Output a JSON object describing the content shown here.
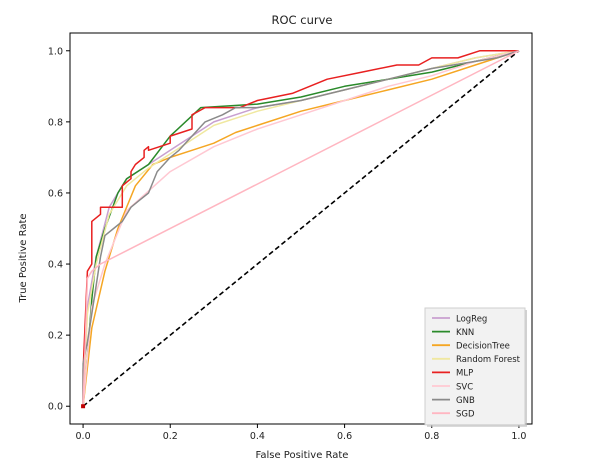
{
  "chart_data": {
    "type": "line",
    "title": "ROC curve",
    "xlabel": "False Positive Rate",
    "ylabel": "True Positive Rate",
    "xlim": [
      -0.03,
      1.03
    ],
    "ylim": [
      -0.05,
      1.05
    ],
    "xticks": [
      "0.0",
      "0.2",
      "0.4",
      "0.6",
      "0.8",
      "1.0"
    ],
    "yticks": [
      "0.0",
      "0.2",
      "0.4",
      "0.6",
      "0.8",
      "1.0"
    ],
    "xtick_values": [
      0,
      0.2,
      0.4,
      0.6,
      0.8,
      1.0
    ],
    "ytick_values": [
      0,
      0.2,
      0.4,
      0.6,
      0.8,
      1.0
    ],
    "grid": false,
    "legend_position": "bottom-right",
    "series": [
      {
        "name": "LogReg",
        "color": "#c8a0d0",
        "x": [
          0,
          0.01,
          0.03,
          0.06,
          0.1,
          0.15,
          0.2,
          0.3,
          0.4,
          0.5,
          0.6,
          0.7,
          0.8,
          0.9,
          1.0
        ],
        "y": [
          0,
          0.28,
          0.42,
          0.56,
          0.64,
          0.68,
          0.72,
          0.8,
          0.84,
          0.86,
          0.89,
          0.92,
          0.95,
          0.98,
          1.0
        ]
      },
      {
        "name": "KNN",
        "color": "#2a8a2a",
        "x": [
          0,
          0.01,
          0.02,
          0.03,
          0.05,
          0.08,
          0.1,
          0.15,
          0.2,
          0.27,
          0.4,
          0.5,
          0.6,
          0.7,
          0.8,
          0.9,
          1.0
        ],
        "y": [
          0,
          0.14,
          0.3,
          0.42,
          0.5,
          0.6,
          0.64,
          0.68,
          0.76,
          0.84,
          0.85,
          0.87,
          0.9,
          0.92,
          0.94,
          0.97,
          1.0
        ]
      },
      {
        "name": "DecisionTree",
        "color": "#f5a623",
        "x": [
          0,
          0.02,
          0.05,
          0.08,
          0.12,
          0.16,
          0.2,
          0.25,
          0.3,
          0.35,
          0.4,
          0.5,
          0.6,
          0.7,
          0.8,
          0.9,
          1.0
        ],
        "y": [
          0,
          0.22,
          0.38,
          0.5,
          0.62,
          0.68,
          0.7,
          0.72,
          0.74,
          0.77,
          0.79,
          0.83,
          0.86,
          0.89,
          0.92,
          0.96,
          1.0
        ]
      },
      {
        "name": "Random Forest",
        "color": "#f0e8a0",
        "x": [
          0,
          0.01,
          0.03,
          0.06,
          0.1,
          0.15,
          0.2,
          0.3,
          0.4,
          0.5,
          0.6,
          0.7,
          0.8,
          0.9,
          1.0
        ],
        "y": [
          0,
          0.26,
          0.4,
          0.54,
          0.62,
          0.67,
          0.71,
          0.79,
          0.83,
          0.86,
          0.89,
          0.92,
          0.95,
          0.98,
          1.0
        ]
      },
      {
        "name": "MLP",
        "color": "#e82020",
        "x": [
          0,
          0,
          0.01,
          0.02,
          0.02,
          0.04,
          0.04,
          0.09,
          0.09,
          0.11,
          0.11,
          0.12,
          0.14,
          0.14,
          0.15,
          0.15,
          0.2,
          0.2,
          0.25,
          0.25,
          0.28,
          0.32,
          0.36,
          0.4,
          0.48,
          0.56,
          0.64,
          0.72,
          0.77,
          0.8,
          0.86,
          0.91,
          0.97,
          1.0
        ],
        "y": [
          0,
          0.1,
          0.38,
          0.4,
          0.52,
          0.54,
          0.56,
          0.56,
          0.62,
          0.64,
          0.66,
          0.68,
          0.7,
          0.72,
          0.73,
          0.72,
          0.74,
          0.76,
          0.78,
          0.82,
          0.84,
          0.84,
          0.84,
          0.86,
          0.88,
          0.92,
          0.94,
          0.96,
          0.96,
          0.98,
          0.98,
          1.0,
          1.0,
          1.0
        ]
      },
      {
        "name": "SVC",
        "color": "#ffc8d2",
        "x": [
          0,
          0.02,
          0.05,
          0.1,
          0.2,
          0.3,
          0.4,
          0.5,
          0.6,
          0.7,
          0.8,
          0.9,
          1.0
        ],
        "y": [
          0,
          0.28,
          0.4,
          0.55,
          0.66,
          0.73,
          0.78,
          0.82,
          0.86,
          0.9,
          0.93,
          0.97,
          1.0
        ]
      },
      {
        "name": "GNB",
        "color": "#8a8a8a",
        "x": [
          0,
          0,
          0.01,
          0.02,
          0.03,
          0.04,
          0.05,
          0.07,
          0.09,
          0.11,
          0.13,
          0.15,
          0.17,
          0.2,
          0.22,
          0.25,
          0.28,
          0.32,
          0.35,
          0.4,
          0.5,
          0.6,
          0.7,
          0.8,
          0.9,
          0.95,
          1.0
        ],
        "y": [
          0,
          0.12,
          0.18,
          0.26,
          0.34,
          0.42,
          0.48,
          0.5,
          0.52,
          0.56,
          0.58,
          0.6,
          0.66,
          0.7,
          0.72,
          0.76,
          0.8,
          0.82,
          0.84,
          0.84,
          0.86,
          0.89,
          0.92,
          0.95,
          0.97,
          0.98,
          1.0
        ]
      },
      {
        "name": "SGD",
        "color": "#ffb6c1",
        "x": [
          0,
          0.01,
          0.02,
          0.04,
          1.0
        ],
        "y": [
          0,
          0.36,
          0.38,
          0.4,
          1.0
        ]
      }
    ],
    "reference_line": {
      "x": [
        0,
        1
      ],
      "y": [
        0,
        1
      ],
      "color": "#000000",
      "style": "dashed"
    }
  }
}
